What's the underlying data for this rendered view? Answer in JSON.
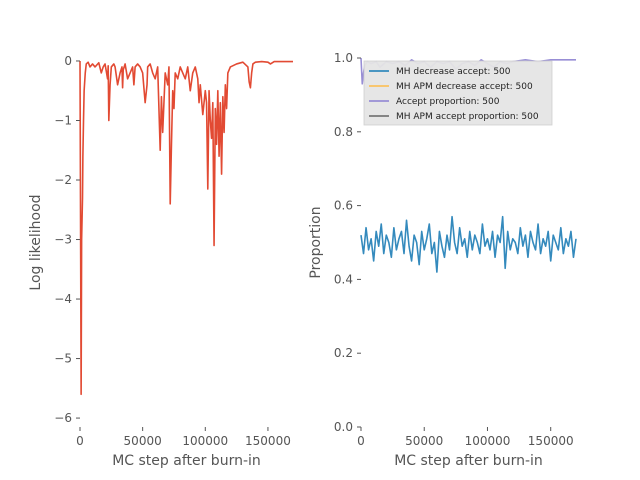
{
  "chart_data": [
    {
      "type": "line",
      "title": "",
      "xlabel": "MC step after burn-in",
      "ylabel": "Log likelihood",
      "xlim": [
        0,
        170000
      ],
      "ylim": [
        -6.15,
        0.05
      ],
      "xticks": [
        0,
        50000,
        100000,
        150000
      ],
      "yticks": [
        0,
        -1,
        -2,
        -3,
        -4,
        -5,
        -6
      ],
      "xtick_labels": [
        "0",
        "50000",
        "100000",
        "150000"
      ],
      "ytick_labels": [
        "0",
        "−1",
        "−2",
        "−3",
        "−4",
        "−5",
        "−6"
      ],
      "grid": false,
      "background": "#ffffff",
      "series": [
        {
          "color": "#E24A33",
          "x": [
            0,
            900,
            1300,
            2000,
            2300,
            2800,
            3300,
            4200,
            5000,
            6500,
            8000,
            10000,
            12000,
            15000,
            17000,
            18500,
            20000,
            22000,
            22500,
            23000,
            24000,
            25000,
            27000,
            28000,
            30000,
            32000,
            33500,
            34000,
            34500,
            36000,
            38000,
            40000,
            42000,
            43000,
            44000,
            46000,
            48000,
            50000,
            52000,
            53500,
            54000,
            56000,
            58000,
            60000,
            62000,
            64000,
            65000,
            66000,
            68000,
            70000,
            71000,
            72000,
            73000,
            74000,
            75000,
            76000,
            78000,
            80000,
            82000,
            84000,
            86000,
            88000,
            90000,
            92000,
            94000,
            95000,
            96000,
            98000,
            100000,
            101000,
            102000,
            103000,
            104000,
            105000,
            106000,
            107000,
            108000,
            109000,
            110000,
            111000,
            112000,
            113000,
            114000,
            115000,
            116000,
            117000,
            118000,
            120000,
            125000,
            130000,
            134000,
            135000,
            136000,
            137000,
            138000,
            140000,
            145000,
            150000,
            152000,
            155000,
            160000,
            165000,
            170000
          ],
          "y": [
            0,
            -5.6,
            -3.0,
            -2.3,
            -1.6,
            -1.0,
            -0.5,
            -0.2,
            -0.05,
            -0.02,
            -0.1,
            -0.05,
            -0.1,
            -0.03,
            -0.2,
            -0.1,
            -0.05,
            -0.3,
            -0.08,
            -1.0,
            -0.4,
            -0.1,
            -0.05,
            -0.1,
            -0.4,
            -0.2,
            -0.1,
            -0.45,
            -0.15,
            -0.05,
            -0.3,
            -0.2,
            -0.1,
            -0.4,
            -0.1,
            -0.05,
            -0.1,
            -0.2,
            -0.7,
            -0.4,
            -0.1,
            -0.05,
            -0.2,
            -0.3,
            -0.1,
            -1.5,
            -0.6,
            -1.2,
            -0.2,
            -0.4,
            -0.1,
            -2.4,
            -1.4,
            -0.5,
            -0.8,
            -0.2,
            -0.3,
            -0.1,
            -0.2,
            -0.3,
            -0.1,
            -0.5,
            -0.2,
            -0.1,
            -0.3,
            -0.7,
            -0.4,
            -0.9,
            -0.5,
            -0.7,
            -2.15,
            -0.5,
            -1.0,
            -1.3,
            -0.7,
            -3.1,
            -0.8,
            -1.4,
            -0.5,
            -1.6,
            -0.7,
            -1.9,
            -0.6,
            -1.2,
            -0.4,
            -0.8,
            -0.2,
            -0.1,
            -0.05,
            -0.02,
            -0.1,
            -0.35,
            -0.45,
            -0.2,
            -0.05,
            -0.02,
            -0.01,
            -0.02,
            -0.05,
            -0.01,
            -0.01,
            -0.01,
            -0.01
          ]
        }
      ]
    },
    {
      "type": "line",
      "title": "",
      "xlabel": "MC step after burn-in",
      "ylabel": "Proportion",
      "xlim": [
        0,
        170000
      ],
      "ylim": [
        0,
        1.0
      ],
      "xticks": [
        0,
        50000,
        100000,
        150000
      ],
      "yticks": [
        0.0,
        0.2,
        0.4,
        0.6,
        0.8,
        1.0
      ],
      "xtick_labels": [
        "0",
        "50000",
        "100000",
        "150000"
      ],
      "ytick_labels": [
        "0.0",
        "0.2",
        "0.4",
        "0.6",
        "0.8",
        "1.0"
      ],
      "grid": false,
      "legend": "top-right",
      "series": [
        {
          "name": "MH decrease accept: 500",
          "color": "#348ABD",
          "x": [
            0,
            2000,
            4000,
            6000,
            8000,
            10000,
            12000,
            14000,
            16000,
            18000,
            20000,
            22000,
            24000,
            26000,
            28000,
            30000,
            32000,
            34000,
            36000,
            38000,
            40000,
            42000,
            44000,
            46000,
            48000,
            50000,
            52000,
            54000,
            56000,
            58000,
            60000,
            62000,
            64000,
            66000,
            68000,
            70000,
            72000,
            74000,
            76000,
            78000,
            80000,
            82000,
            84000,
            86000,
            88000,
            90000,
            92000,
            94000,
            96000,
            98000,
            100000,
            102000,
            104000,
            106000,
            108000,
            110000,
            112000,
            114000,
            116000,
            118000,
            120000,
            122000,
            124000,
            126000,
            128000,
            130000,
            132000,
            134000,
            136000,
            138000,
            140000,
            142000,
            144000,
            146000,
            148000,
            150000,
            152000,
            154000,
            156000,
            158000,
            160000,
            162000,
            164000,
            166000,
            168000,
            170000
          ],
          "y": [
            0.52,
            0.47,
            0.54,
            0.48,
            0.51,
            0.45,
            0.53,
            0.49,
            0.55,
            0.47,
            0.52,
            0.5,
            0.46,
            0.54,
            0.48,
            0.51,
            0.53,
            0.47,
            0.56,
            0.49,
            0.45,
            0.52,
            0.5,
            0.44,
            0.53,
            0.48,
            0.51,
            0.55,
            0.47,
            0.5,
            0.42,
            0.53,
            0.49,
            0.46,
            0.52,
            0.48,
            0.57,
            0.5,
            0.47,
            0.54,
            0.49,
            0.51,
            0.46,
            0.53,
            0.48,
            0.52,
            0.5,
            0.47,
            0.55,
            0.49,
            0.51,
            0.48,
            0.53,
            0.46,
            0.52,
            0.5,
            0.57,
            0.43,
            0.53,
            0.48,
            0.51,
            0.5,
            0.47,
            0.54,
            0.49,
            0.52,
            0.46,
            0.53,
            0.5,
            0.48,
            0.55,
            0.47,
            0.51,
            0.49,
            0.53,
            0.45,
            0.52,
            0.5,
            0.48,
            0.54,
            0.47,
            0.51,
            0.49,
            0.53,
            0.46,
            0.51
          ]
        },
        {
          "name": "MH APM decrease accept: 500",
          "color": "#FBC15E",
          "x": [],
          "y": []
        },
        {
          "name": "Accept proportion: 500",
          "color": "#988ED5",
          "x": [
            0,
            1000,
            2000,
            3000,
            5000,
            8000,
            12000,
            15000,
            20000,
            25000,
            30000,
            35000,
            40000,
            45000,
            50000,
            55000,
            60000,
            65000,
            70000,
            75000,
            80000,
            85000,
            90000,
            95000,
            100000,
            105000,
            110000,
            115000,
            120000,
            130000,
            140000,
            150000,
            160000,
            170000
          ],
          "y": [
            1.0,
            0.93,
            0.96,
            0.98,
            0.99,
            0.985,
            0.99,
            0.975,
            0.99,
            0.985,
            0.99,
            0.98,
            0.995,
            0.985,
            0.99,
            0.975,
            0.99,
            0.985,
            0.99,
            0.97,
            0.985,
            0.99,
            0.98,
            0.995,
            0.985,
            0.975,
            0.99,
            0.985,
            0.99,
            0.995,
            0.99,
            0.995,
            0.995,
            0.995
          ]
        },
        {
          "name": "MH APM accept proportion: 500",
          "color": "#777777",
          "x": [],
          "y": []
        }
      ]
    }
  ]
}
